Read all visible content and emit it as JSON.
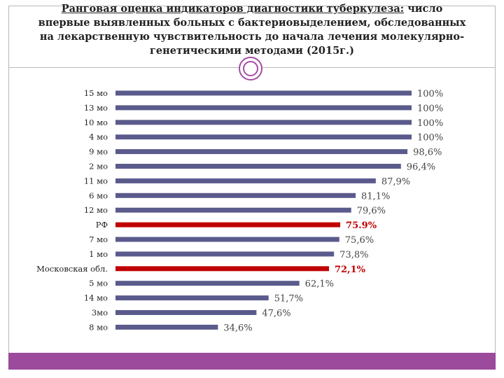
{
  "title": {
    "line1_underlined": "Ранговая оценка индикаторов диагностики туберкулеза:",
    "line1_rest": " число",
    "line2": "впервые выявленных больных с бактериовыделением, обследованных",
    "line3": "на лекарственную чувствительность до начала лечения молекулярно-",
    "line4": "генетическими методами (2015г.)"
  },
  "colors": {
    "bar": "#5a5a8c",
    "bar_highlight": "#c00000",
    "accent": "#9b4a9c"
  },
  "chart_data": {
    "type": "bar",
    "orientation": "horizontal",
    "title": "",
    "xlabel": "",
    "ylabel": "",
    "xlim": [
      0,
      100
    ],
    "grid": false,
    "legend": "none",
    "categories": [
      "15 мо",
      "13 мо",
      "10 мо",
      "4 мо",
      "9 мо",
      "2 мо",
      "11 мо",
      "6 мо",
      "12 мо",
      "РФ",
      "7 мо",
      "1 мо",
      "Московская обл.",
      "5 мо",
      "14 мо",
      "3мо",
      "8 мо"
    ],
    "values": [
      100,
      100,
      100,
      100,
      98.6,
      96.4,
      87.9,
      81.1,
      79.6,
      75.9,
      75.6,
      73.8,
      72.1,
      62.1,
      51.7,
      47.6,
      34.6
    ],
    "value_labels": [
      "100%",
      "100%",
      "100%",
      "100%",
      "98,6%",
      "96,4%",
      "87,9%",
      "81,1%",
      "79,6%",
      "75.9%",
      "75,6%",
      "73,8%",
      "72,1%",
      "62,1%",
      "51,7%",
      "47,6%",
      "34,6%"
    ],
    "highlight": [
      false,
      false,
      false,
      false,
      false,
      false,
      false,
      false,
      false,
      true,
      false,
      false,
      true,
      false,
      false,
      false,
      false
    ]
  }
}
